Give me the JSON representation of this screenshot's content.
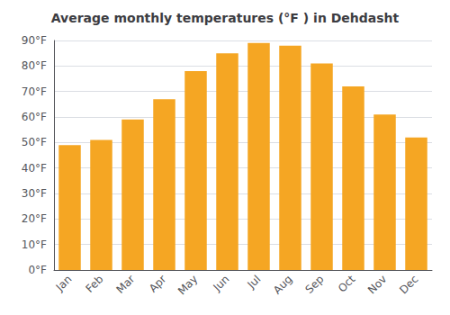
{
  "chart_data": {
    "type": "bar",
    "title": "Average monthly temperatures (°F ) in Dehdasht",
    "categories": [
      "Jan",
      "Feb",
      "Mar",
      "Apr",
      "May",
      "Jun",
      "Jul",
      "Aug",
      "Sep",
      "Oct",
      "Nov",
      "Dec"
    ],
    "values": [
      49,
      51,
      59,
      67,
      78,
      85,
      89,
      88,
      81,
      72,
      61,
      52
    ],
    "color": "#F5A623",
    "ylim": [
      0,
      90
    ],
    "yticks": [
      {
        "value": 0,
        "label": "0°F"
      },
      {
        "value": 10,
        "label": "10°F"
      },
      {
        "value": 20,
        "label": "20°F"
      },
      {
        "value": 30,
        "label": "30°F"
      },
      {
        "value": 40,
        "label": "40°F"
      },
      {
        "value": 50,
        "label": "50°F"
      },
      {
        "value": 60,
        "label": "60°F"
      },
      {
        "value": 70,
        "label": "70°F"
      },
      {
        "value": 80,
        "label": "80°F"
      },
      {
        "value": 90,
        "label": "90°F"
      }
    ],
    "grid": true
  }
}
